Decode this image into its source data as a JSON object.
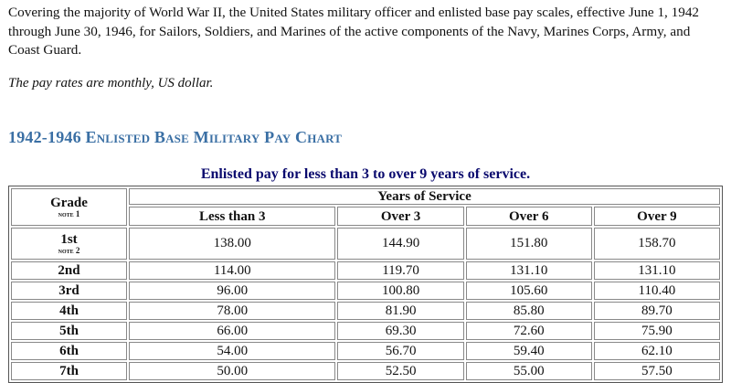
{
  "intro": {
    "text": "Covering the majority of World War II, the United States military officer and enlisted base pay scales, effective June 1, 1942 through June 30, 1946, for Sailors, Soldiers, and Marines of the active components of the Navy, Marines Corps, Army, and Coast Guard.",
    "note": "The pay rates are monthly, US dollar."
  },
  "section_title": "1942-1946 Enlisted Base Military Pay Chart",
  "table": {
    "caption": "Enlisted pay for less than 3 to over 9 years of service.",
    "grade_header": "Grade",
    "grade_note": "note 1",
    "years_header": "Years of Service",
    "columns": [
      "Less than 3",
      "Over 3",
      "Over 6",
      "Over 9"
    ],
    "rows": [
      {
        "grade": "1st",
        "note": "note 2",
        "values": [
          "138.00",
          "144.90",
          "151.80",
          "158.70"
        ]
      },
      {
        "grade": "2nd",
        "values": [
          "114.00",
          "119.70",
          "131.10",
          "131.10"
        ]
      },
      {
        "grade": "3rd",
        "values": [
          "96.00",
          "100.80",
          "105.60",
          "110.40"
        ]
      },
      {
        "grade": "4th",
        "values": [
          "78.00",
          "81.90",
          "85.80",
          "89.70"
        ]
      },
      {
        "grade": "5th",
        "values": [
          "66.00",
          "69.30",
          "72.60",
          "75.90"
        ]
      },
      {
        "grade": "6th",
        "values": [
          "54.00",
          "56.70",
          "59.40",
          "62.10"
        ]
      },
      {
        "grade": "7th",
        "values": [
          "50.00",
          "52.50",
          "55.00",
          "57.50"
        ]
      }
    ]
  }
}
